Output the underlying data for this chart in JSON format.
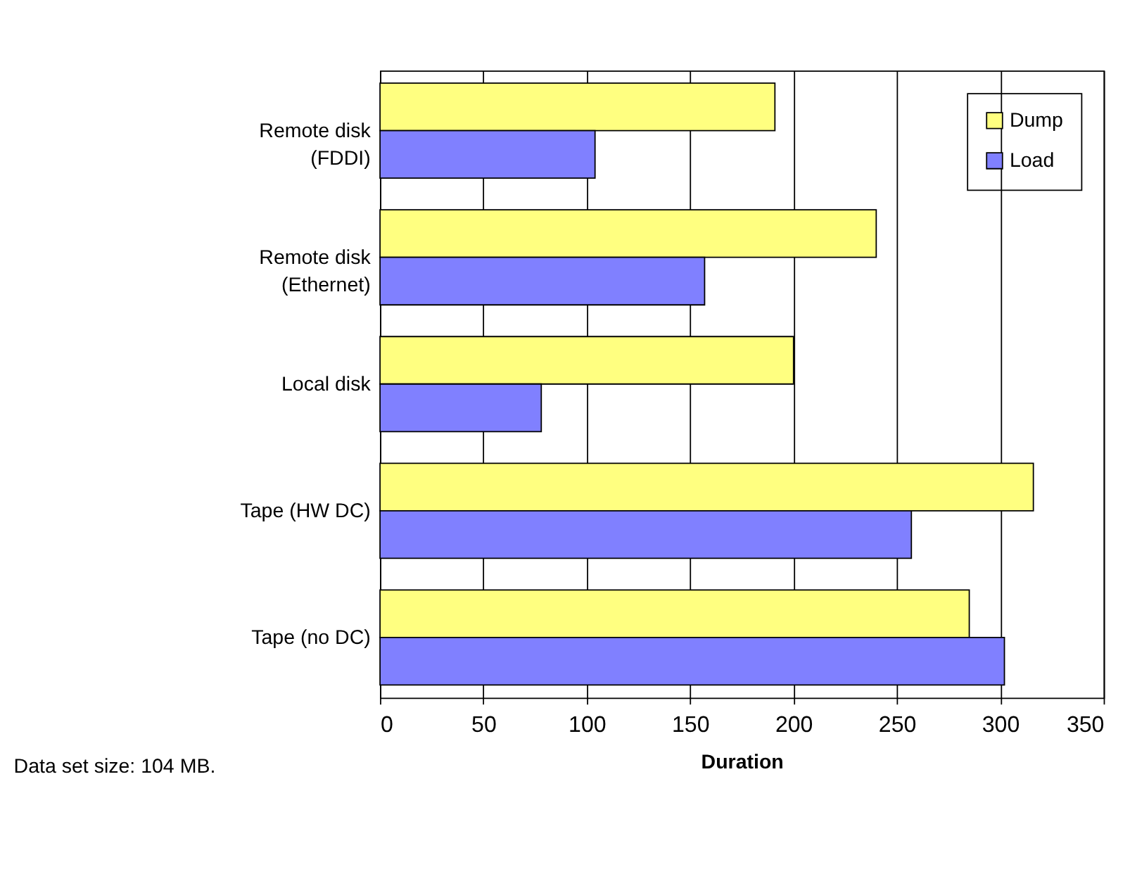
{
  "chart_data": {
    "type": "bar",
    "orientation": "horizontal",
    "xlabel": "Duration",
    "categories": [
      "Remote disk (FDDI)",
      "Remote disk (Ethernet)",
      "Local disk",
      "Tape (HW DC)",
      "Tape (no DC)"
    ],
    "series": [
      {
        "name": "Dump",
        "color": "#ffff80",
        "values": [
          191,
          240,
          200,
          316,
          285
        ]
      },
      {
        "name": "Load",
        "color": "#8080ff",
        "values": [
          104,
          157,
          78,
          257,
          302
        ]
      }
    ],
    "xlim": [
      0,
      350
    ],
    "xticks": [
      0,
      50,
      100,
      150,
      200,
      250,
      300,
      350
    ],
    "grid": "x",
    "legend": "top right",
    "annotations": [
      "Data set size: 104 MB."
    ]
  }
}
